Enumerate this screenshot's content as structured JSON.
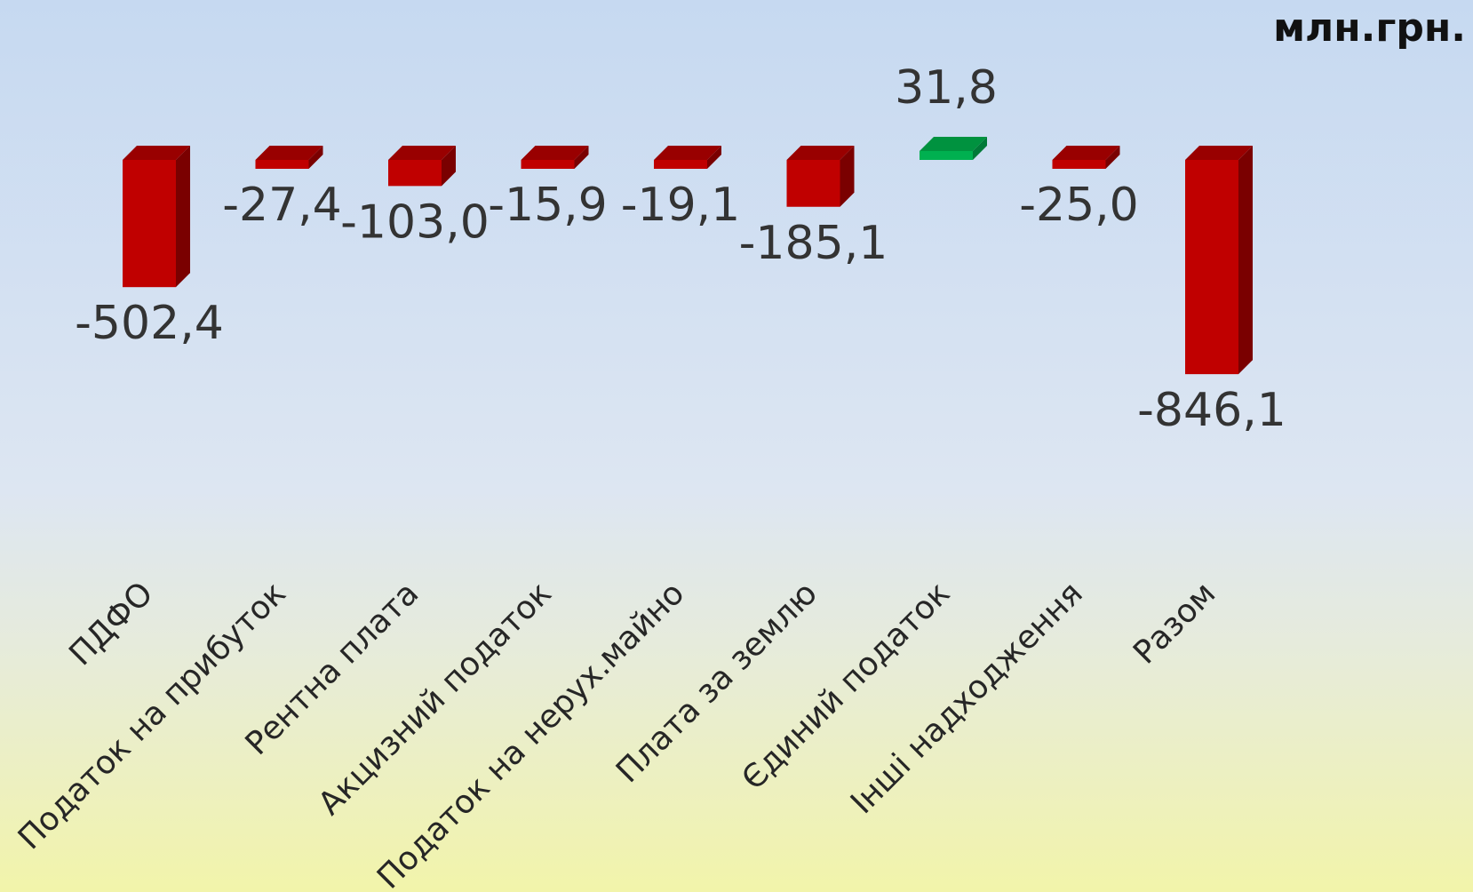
{
  "chart_data": {
    "type": "bar",
    "unit_label": "млн.грн.",
    "categories": [
      "ПДФО",
      "Податок на прибуток",
      "Рентна плата",
      "Акцизний  податок",
      "Податок на нерух.майно",
      "Плата за землю",
      "Єдиний податок",
      "Інші надходження",
      "Разом"
    ],
    "values": [
      -502.4,
      -27.4,
      -103.0,
      -15.9,
      -19.1,
      -185.1,
      31.8,
      -25.0,
      -846.1
    ],
    "value_labels": [
      "-502,4",
      "-27,4",
      "-103,0",
      "-15,9",
      "-19,1",
      "-185,1",
      "31,8",
      "-25,0",
      "-846,1"
    ],
    "title": "",
    "xlabel": "",
    "ylabel": "",
    "ylim": [
      -900,
      50
    ],
    "grid": false,
    "legend": "none",
    "colors": {
      "negative_front": "#c00000",
      "negative_side": "#7a0000",
      "negative_top": "#990000",
      "positive_front": "#00b050",
      "positive_side": "#007a38",
      "positive_top": "#00923f"
    }
  }
}
